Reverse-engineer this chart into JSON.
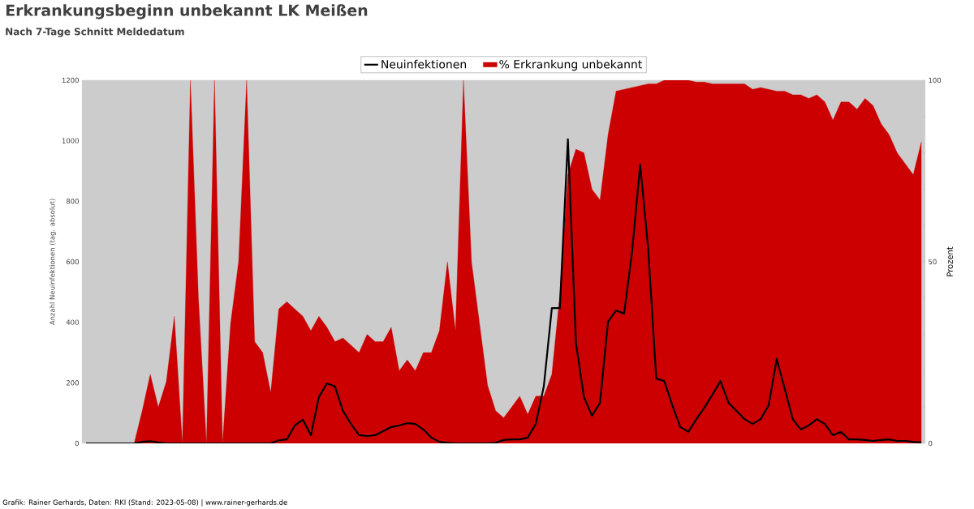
{
  "chart_data": {
    "type": "line",
    "title": "Erkrankungsbeginn unbekannt LK Meißen",
    "subtitle": "Nach 7-Tage Schnitt Meldedatum",
    "ylabel": "Anzahl Neuinfektionen (tag. absolut)",
    "y2label": "Prozent",
    "categories": [
      null,
      null,
      null,
      null,
      null,
      null,
      null,
      null,
      null,
      null,
      null,
      null,
      null,
      null,
      null,
      null,
      null,
      null,
      null,
      null,
      null,
      null,
      null,
      null,
      null,
      null,
      null,
      null,
      null,
      null,
      null,
      null,
      null,
      null,
      null,
      null,
      null,
      null,
      null,
      null,
      null,
      null,
      null,
      null,
      null,
      null,
      null,
      null,
      null,
      null,
      null,
      null,
      null,
      null,
      null,
      null,
      null,
      null,
      null,
      null,
      null,
      null,
      null,
      null,
      null,
      null,
      null,
      null,
      null,
      null,
      null,
      null,
      null,
      null,
      null,
      null,
      null,
      null,
      null,
      null,
      null,
      null,
      null,
      null,
      null,
      null,
      null,
      null,
      null,
      null,
      null,
      null,
      null,
      null,
      null,
      null,
      null,
      null,
      null,
      null,
      null,
      null,
      null,
      null,
      null
    ],
    "series": [
      {
        "name": "Neuinfektionen",
        "color": "#000000",
        "values": [
          0,
          0,
          0,
          0,
          0,
          0,
          0,
          5,
          7,
          3,
          0,
          0,
          0,
          0,
          0,
          0,
          0,
          0,
          0,
          0,
          0,
          0,
          0,
          0,
          10,
          13,
          59,
          78,
          27,
          153,
          198,
          188,
          107,
          64,
          27,
          24,
          27,
          40,
          54,
          59,
          67,
          64,
          46,
          19,
          5,
          2,
          0,
          0,
          0,
          0,
          0,
          2,
          11,
          13,
          13,
          19,
          64,
          188,
          447,
          447,
          1005,
          332,
          153,
          91,
          134,
          402,
          439,
          429,
          635,
          921,
          643,
          214,
          206,
          126,
          54,
          38,
          80,
          118,
          161,
          206,
          134,
          107,
          80,
          64,
          80,
          126,
          279,
          180,
          80,
          46,
          59,
          80,
          64,
          27,
          38,
          13,
          13,
          11,
          8,
          11,
          13,
          8,
          8,
          5,
          3
        ]
      },
      {
        "name": "% Erkrankung unbekannt",
        "type": "area",
        "axis": "y2",
        "color": "#cc0000",
        "values": [
          0,
          0,
          0,
          0,
          0,
          0,
          0,
          9,
          19,
          10,
          17,
          35,
          0,
          100,
          40,
          0,
          100,
          0,
          33,
          50,
          100,
          28,
          25,
          14,
          37,
          39,
          37,
          35,
          31,
          35,
          32,
          28,
          29,
          27,
          25,
          30,
          28,
          28,
          32,
          20,
          23,
          20,
          25,
          25,
          31,
          50,
          31,
          100,
          50,
          33,
          16,
          9,
          7,
          10,
          13,
          8,
          13,
          13,
          19,
          41,
          74,
          81,
          80,
          70,
          67,
          85,
          97,
          97.5,
          98,
          98.5,
          99,
          99,
          100,
          100,
          100,
          100,
          99.5,
          99.5,
          99,
          99,
          99,
          99,
          99,
          97.5,
          98,
          97.5,
          97,
          97,
          96,
          96,
          95,
          96,
          94,
          89,
          94,
          94,
          92,
          95,
          93,
          88,
          85,
          80,
          77,
          74,
          83
        ]
      }
    ],
    "ylim": [
      0,
      1200
    ],
    "yticks": [
      0,
      200,
      400,
      600,
      800,
      1000,
      1200
    ],
    "y2lim": [
      0,
      100
    ],
    "y2ticks": [
      0,
      50,
      100
    ],
    "legend": "top",
    "annotations": [
      "Grafik: Rainer Gerhards, Daten: RKI (Stand: 2023-05-08) | www.rainer-gerhards.de"
    ]
  }
}
